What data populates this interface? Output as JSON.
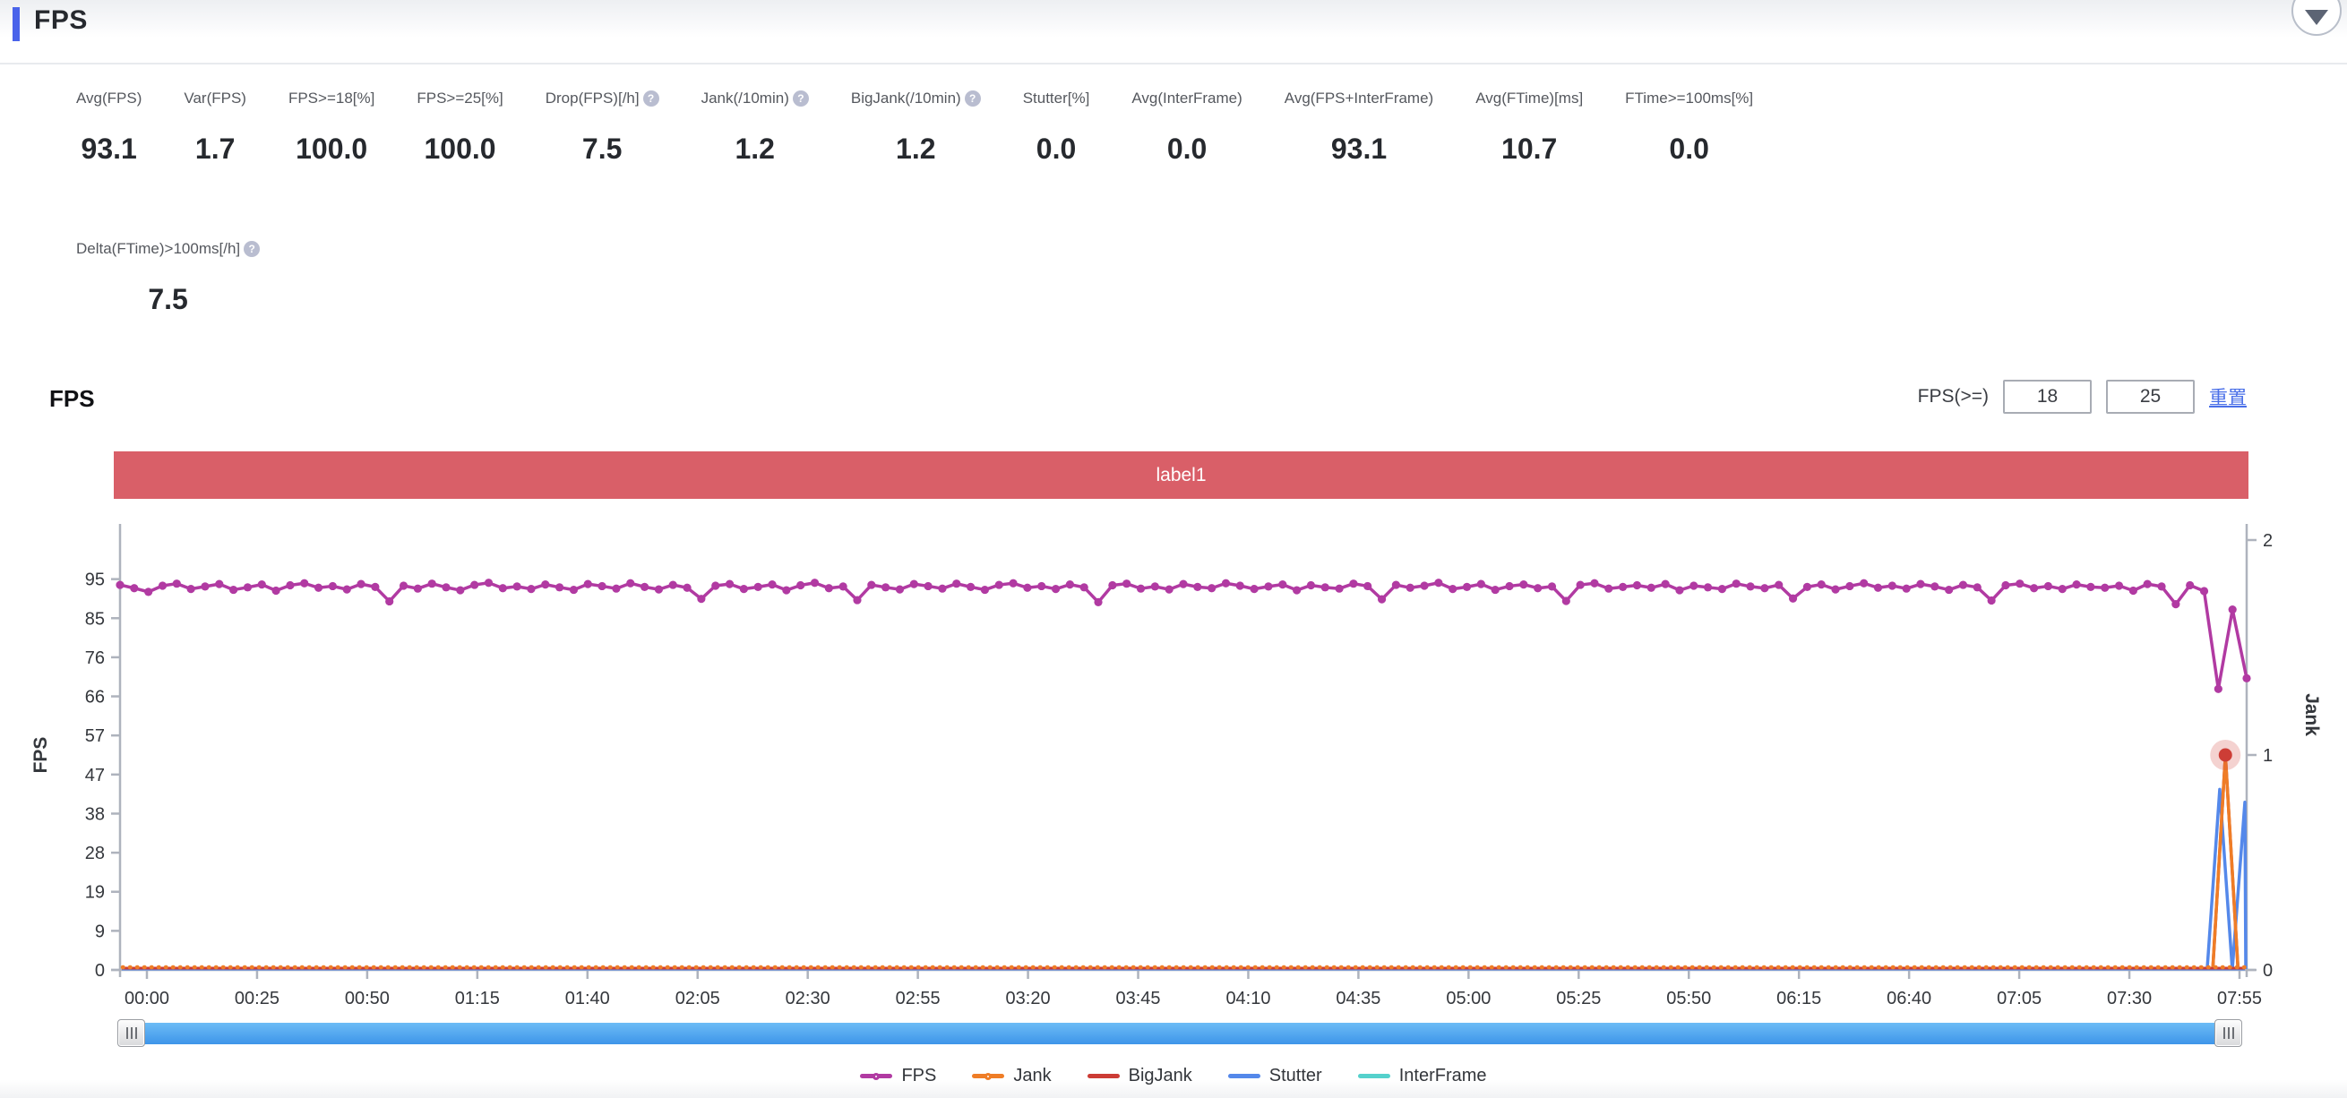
{
  "header": {
    "title": "FPS"
  },
  "stats": {
    "row1": [
      {
        "label": "Avg(FPS)",
        "value": "93.1",
        "help": false
      },
      {
        "label": "Var(FPS)",
        "value": "1.7",
        "help": false
      },
      {
        "label": "FPS>=18[%]",
        "value": "100.0",
        "help": false
      },
      {
        "label": "FPS>=25[%]",
        "value": "100.0",
        "help": false
      },
      {
        "label": "Drop(FPS)[/h]",
        "value": "7.5",
        "help": true
      },
      {
        "label": "Jank(/10min)",
        "value": "1.2",
        "help": true
      },
      {
        "label": "BigJank(/10min)",
        "value": "1.2",
        "help": true
      },
      {
        "label": "Stutter[%]",
        "value": "0.0",
        "help": false
      },
      {
        "label": "Avg(InterFrame)",
        "value": "0.0",
        "help": false
      },
      {
        "label": "Avg(FPS+InterFrame)",
        "value": "93.1",
        "help": false
      },
      {
        "label": "Avg(FTime)[ms]",
        "value": "10.7",
        "help": false
      },
      {
        "label": "FTime>=100ms[%]",
        "value": "0.0",
        "help": false
      }
    ],
    "row2": [
      {
        "label": "Delta(FTime)>100ms[/h]",
        "value": "7.5",
        "help": true
      }
    ]
  },
  "chart_section": {
    "title": "FPS",
    "threshold_label": "FPS(>=)",
    "threshold_inputs": [
      "18",
      "25"
    ],
    "reset_link": "重置",
    "banner": {
      "text": "label1",
      "color": "#d95f68"
    }
  },
  "chart_data": {
    "type": "line",
    "title": "FPS",
    "grid": false,
    "legend_position": "bottom",
    "ylabel_left": "FPS",
    "ylabel_right": "Jank",
    "y_left_tick_labels": [
      "0",
      "9",
      "19",
      "28",
      "38",
      "47",
      "57",
      "66",
      "76",
      "85",
      "95"
    ],
    "y_left_tick_step": 9.5,
    "y_left_range": [
      0,
      104.5
    ],
    "y_right_tick_labels": [
      "0",
      "1",
      "2"
    ],
    "y_right_range": [
      0,
      2
    ],
    "x_tick_labels": [
      "00:00",
      "00:25",
      "00:50",
      "01:15",
      "01:40",
      "02:05",
      "02:30",
      "02:55",
      "03:20",
      "03:45",
      "04:10",
      "04:35",
      "05:00",
      "05:25",
      "05:50",
      "06:15",
      "06:40",
      "07:05",
      "07:30",
      "07:55"
    ],
    "series": [
      {
        "name": "FPS",
        "axis": "left",
        "color": "#b13aa2",
        "marker": true,
        "values": [
          93.6,
          92.8,
          91.9,
          93.4,
          93.9,
          92.6,
          93.2,
          93.8,
          92.4,
          93.0,
          93.7,
          92.2,
          93.5,
          94.0,
          92.9,
          93.3,
          92.5,
          93.8,
          93.1,
          89.6,
          93.4,
          92.7,
          93.9,
          93.0,
          92.3,
          93.6,
          94.1,
          92.8,
          93.2,
          92.6,
          93.7,
          93.0,
          92.4,
          93.8,
          93.3,
          92.7,
          94.0,
          93.1,
          92.5,
          93.6,
          92.9,
          90.2,
          93.4,
          93.8,
          92.6,
          93.1,
          93.7,
          92.3,
          93.5,
          94.1,
          92.8,
          93.2,
          89.9,
          93.6,
          93.0,
          92.5,
          93.8,
          93.3,
          92.7,
          93.9,
          93.1,
          92.4,
          93.6,
          94.0,
          92.9,
          93.3,
          92.6,
          93.7,
          93.0,
          89.4,
          93.5,
          93.9,
          92.7,
          93.2,
          92.5,
          93.8,
          93.1,
          92.8,
          94.0,
          93.4,
          92.6,
          93.2,
          93.7,
          92.3,
          93.5,
          93.0,
          92.7,
          93.9,
          93.3,
          90.1,
          93.6,
          92.9,
          93.4,
          94.1,
          92.6,
          93.1,
          93.8,
          92.4,
          93.3,
          93.7,
          92.8,
          93.2,
          89.7,
          93.6,
          94.0,
          92.7,
          93.1,
          93.5,
          92.9,
          93.8,
          92.3,
          93.4,
          93.0,
          92.6,
          93.9,
          93.2,
          92.8,
          93.6,
          90.3,
          93.1,
          93.7,
          92.5,
          93.3,
          94.0,
          92.9,
          93.4,
          92.7,
          93.8,
          93.2,
          92.4,
          93.6,
          93.0,
          89.8,
          93.5,
          93.9,
          92.8,
          93.3,
          92.6,
          93.7,
          93.1,
          92.9,
          93.4,
          92.2,
          93.8,
          93.2,
          88.9,
          93.5,
          92.1,
          68.3,
          87.6,
          70.9
        ]
      },
      {
        "name": "Jank",
        "axis": "right",
        "color": "#ef7d26",
        "style": "dotted-baseline",
        "baseline": 0,
        "spikes": [
          {
            "index": 148.5,
            "value": 1.0
          }
        ]
      },
      {
        "name": "BigJank",
        "axis": "right",
        "color": "#cc3c35",
        "baseline": 0,
        "spikes": [
          {
            "index": 148.5,
            "value": 1.0
          }
        ],
        "emphasis": {
          "index": 148.5,
          "value": 1.0
        }
      },
      {
        "name": "Stutter",
        "axis": "right",
        "color": "#5488ea",
        "baseline": 0,
        "spikes": [
          {
            "index": 148.1,
            "value": 0.84
          },
          {
            "index": 149.9,
            "value": 0.78
          }
        ]
      },
      {
        "name": "InterFrame",
        "axis": "left",
        "color": "#55d1cc",
        "baseline": 0,
        "spikes": []
      }
    ],
    "legend": [
      {
        "label": "FPS",
        "color": "#b13aa2",
        "marker": "dot-line"
      },
      {
        "label": "Jank",
        "color": "#ef7d26",
        "marker": "dot-line"
      },
      {
        "label": "BigJank",
        "color": "#cc3c35",
        "marker": "line"
      },
      {
        "label": "Stutter",
        "color": "#5488ea",
        "marker": "line"
      },
      {
        "label": "InterFrame",
        "color": "#55d1cc",
        "marker": "line"
      }
    ]
  }
}
